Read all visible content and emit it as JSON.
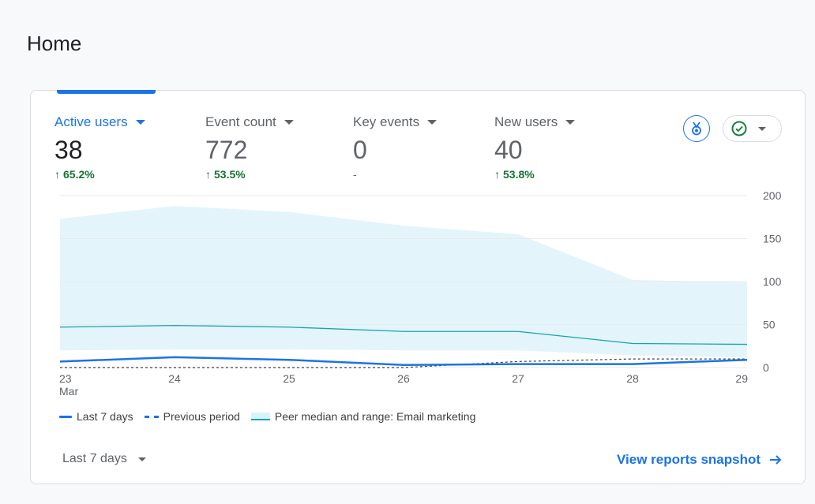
{
  "page": {
    "title": "Home"
  },
  "metrics": [
    {
      "label": "Active users",
      "value": "38",
      "change": "65.2%",
      "trend": "up"
    },
    {
      "label": "Event count",
      "value": "772",
      "change": "53.5%",
      "trend": "up"
    },
    {
      "label": "Key events",
      "value": "0",
      "change": "-",
      "trend": "none"
    },
    {
      "label": "New users",
      "value": "40",
      "change": "53.8%",
      "trend": "up"
    }
  ],
  "icons": {
    "insights": "insights-badge-icon",
    "status": "check-circle-icon",
    "arrow": "arrow-right-icon"
  },
  "colors": {
    "accent": "#1a73e8",
    "positive": "#137333",
    "band": "#e3f5fa",
    "median": "#12a4af",
    "check": "#188038"
  },
  "chart_data": {
    "type": "line",
    "x": [
      "23",
      "24",
      "25",
      "26",
      "27",
      "28",
      "29"
    ],
    "x_sublabel": "Mar",
    "ylim": [
      0,
      200
    ],
    "y_ticks": [
      "0",
      "50",
      "100",
      "150",
      "200"
    ],
    "series": [
      {
        "name": "Last 7 days",
        "style": "solid",
        "values": [
          7,
          12,
          9,
          3,
          4,
          4,
          9
        ]
      },
      {
        "name": "Previous period",
        "style": "dashed",
        "values": [
          0,
          0,
          0,
          0,
          7,
          10,
          10
        ]
      },
      {
        "name": "Peer median",
        "style": "median",
        "values": [
          47,
          49,
          47,
          42,
          42,
          28,
          27
        ]
      }
    ],
    "band": {
      "name": "Peer median and range: Email marketing",
      "upper": [
        173,
        188,
        181,
        165,
        155,
        102,
        99
      ],
      "lower": [
        20,
        21,
        21,
        20,
        20,
        14,
        12
      ]
    }
  },
  "legend": {
    "last7": "Last 7 days",
    "previous": "Previous period",
    "peer": "Peer median and range: Email marketing"
  },
  "footer": {
    "date_range": "Last 7 days",
    "view_link": "View reports snapshot"
  }
}
